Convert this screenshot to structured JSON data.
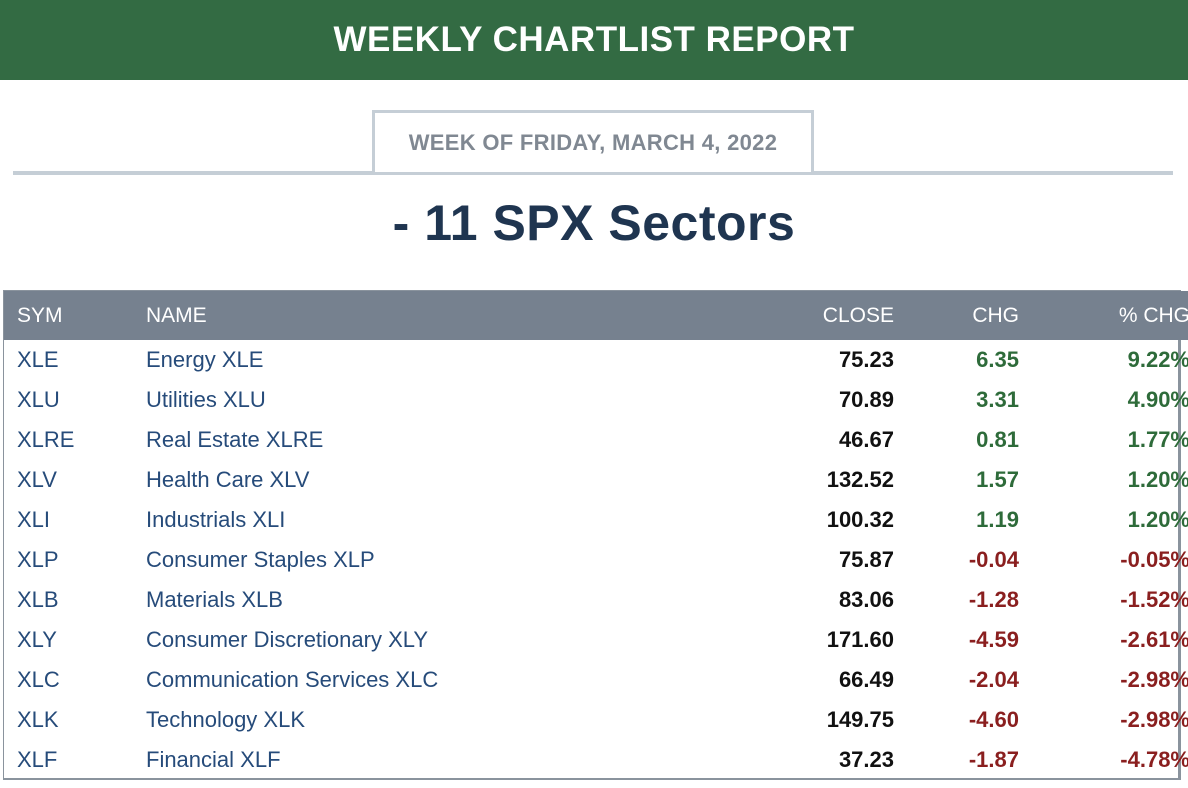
{
  "banner": {
    "title": "WEEKLY CHARTLIST REPORT"
  },
  "week": {
    "label": "WEEK OF FRIDAY, MARCH 4, 2022"
  },
  "subtitle": "- 11 SPX Sectors",
  "colors": {
    "banner": "#336b43",
    "header": "#76818f",
    "positive": "#2e6b3a",
    "negative": "#8a1f1f",
    "link": "#264b7a"
  },
  "table": {
    "headers": {
      "sym": "SYM",
      "name": "NAME",
      "close": "CLOSE",
      "chg": "CHG",
      "pct": "% CHG"
    },
    "rows": [
      {
        "sym": "XLE",
        "name": "Energy XLE",
        "close": "75.23",
        "chg": "6.35",
        "pct": "9.22%",
        "dir": "pos"
      },
      {
        "sym": "XLU",
        "name": "Utilities XLU",
        "close": "70.89",
        "chg": "3.31",
        "pct": "4.90%",
        "dir": "pos"
      },
      {
        "sym": "XLRE",
        "name": "Real Estate XLRE",
        "close": "46.67",
        "chg": "0.81",
        "pct": "1.77%",
        "dir": "pos"
      },
      {
        "sym": "XLV",
        "name": "Health Care XLV",
        "close": "132.52",
        "chg": "1.57",
        "pct": "1.20%",
        "dir": "pos"
      },
      {
        "sym": "XLI",
        "name": "Industrials XLI",
        "close": "100.32",
        "chg": "1.19",
        "pct": "1.20%",
        "dir": "pos"
      },
      {
        "sym": "XLP",
        "name": "Consumer Staples XLP",
        "close": "75.87",
        "chg": "-0.04",
        "pct": "-0.05%",
        "dir": "neg"
      },
      {
        "sym": "XLB",
        "name": "Materials XLB",
        "close": "83.06",
        "chg": "-1.28",
        "pct": "-1.52%",
        "dir": "neg"
      },
      {
        "sym": "XLY",
        "name": "Consumer Discretionary XLY",
        "close": "171.60",
        "chg": "-4.59",
        "pct": "-2.61%",
        "dir": "neg"
      },
      {
        "sym": "XLC",
        "name": "Communication Services XLC",
        "close": "66.49",
        "chg": "-2.04",
        "pct": "-2.98%",
        "dir": "neg"
      },
      {
        "sym": "XLK",
        "name": "Technology XLK",
        "close": "149.75",
        "chg": "-4.60",
        "pct": "-2.98%",
        "dir": "neg"
      },
      {
        "sym": "XLF",
        "name": "Financial XLF",
        "close": "37.23",
        "chg": "-1.87",
        "pct": "-4.78%",
        "dir": "neg"
      }
    ]
  }
}
